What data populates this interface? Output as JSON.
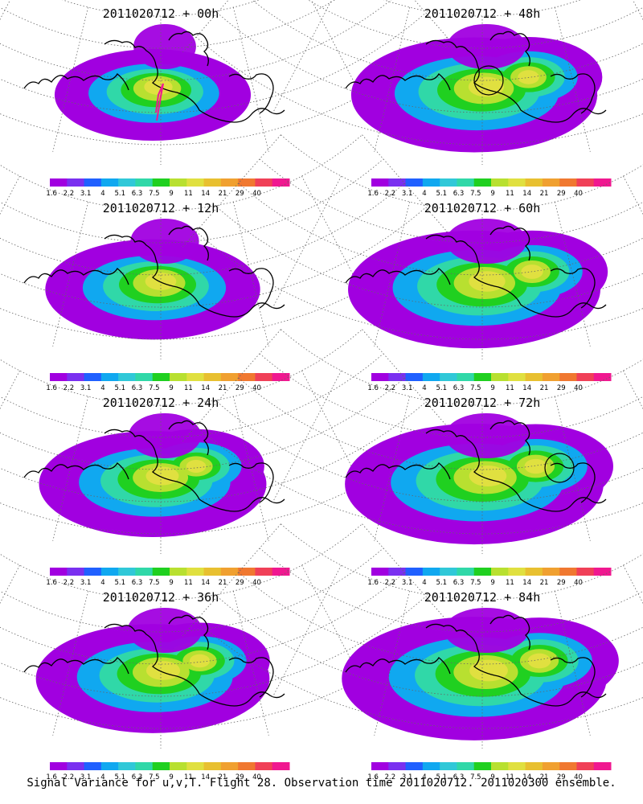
{
  "colorbar": {
    "colors": [
      "#a100e0",
      "#7a30f0",
      "#2060ff",
      "#10a8f0",
      "#30c8d8",
      "#30d8a8",
      "#20d020",
      "#b8e030",
      "#e0e040",
      "#e8c030",
      "#f0a030",
      "#f07830",
      "#f04058",
      "#f01890"
    ],
    "labels": [
      "1.6",
      "2.2",
      "3.1",
      "4",
      "5.1",
      "6.3",
      "7.5",
      "9",
      "11",
      "14",
      "21",
      "29",
      "40"
    ]
  },
  "panels": [
    {
      "title": "2011020712 + 00h",
      "level": 0.35,
      "flight_track": true,
      "circle": null
    },
    {
      "title": "2011020712 + 48h",
      "level": 0.75,
      "flight_track": false,
      "circle": "left"
    },
    {
      "title": "2011020712 + 12h",
      "level": 0.5,
      "flight_track": false,
      "circle": null
    },
    {
      "title": "2011020712 + 60h",
      "level": 0.8,
      "flight_track": false,
      "circle": null
    },
    {
      "title": "2011020712 + 24h",
      "level": 0.6,
      "flight_track": false,
      "circle": null
    },
    {
      "title": "2011020712 + 72h",
      "level": 0.85,
      "flight_track": false,
      "circle": "right"
    },
    {
      "title": "2011020712 + 36h",
      "level": 0.65,
      "flight_track": false,
      "circle": null
    },
    {
      "title": "2011020712 + 84h",
      "level": 0.9,
      "flight_track": false,
      "circle": null
    }
  ],
  "caption": "Signal Variance for u,v,T. Flight 28. Observation time 2011020712. 2011020300 ensemble."
}
